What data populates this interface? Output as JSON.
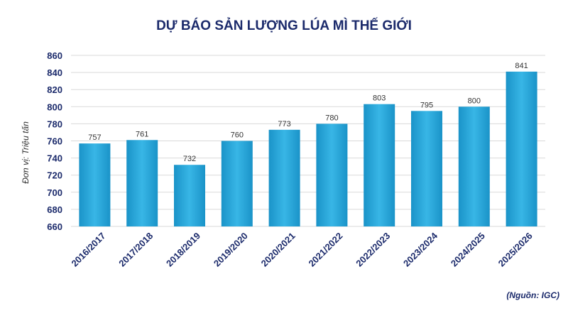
{
  "chart_data": {
    "type": "bar",
    "title": "DỰ BÁO SẢN LƯỢNG LÚA MÌ THẾ GIỚI",
    "ylabel": "Đơn vị: Triệu tấn",
    "xlabel": "",
    "source": "(Nguồn: IGC)",
    "categories": [
      "2016/2017",
      "2017/2018",
      "2018/2019",
      "2019/2020",
      "2020/2021",
      "2021/2022",
      "2022/2023",
      "2023/2024",
      "2024/2025",
      "2025/2026"
    ],
    "values": [
      757,
      761,
      732,
      760,
      773,
      780,
      803,
      795,
      800,
      841
    ],
    "ylim": [
      660,
      860
    ],
    "yticks": [
      660,
      680,
      700,
      720,
      740,
      760,
      780,
      800,
      820,
      840,
      860
    ],
    "grid": true,
    "legend": "none",
    "colors": {
      "bar_edge": "#1a93c8",
      "bar_center": "#38b6e6",
      "text": "#1b2a6b"
    }
  }
}
